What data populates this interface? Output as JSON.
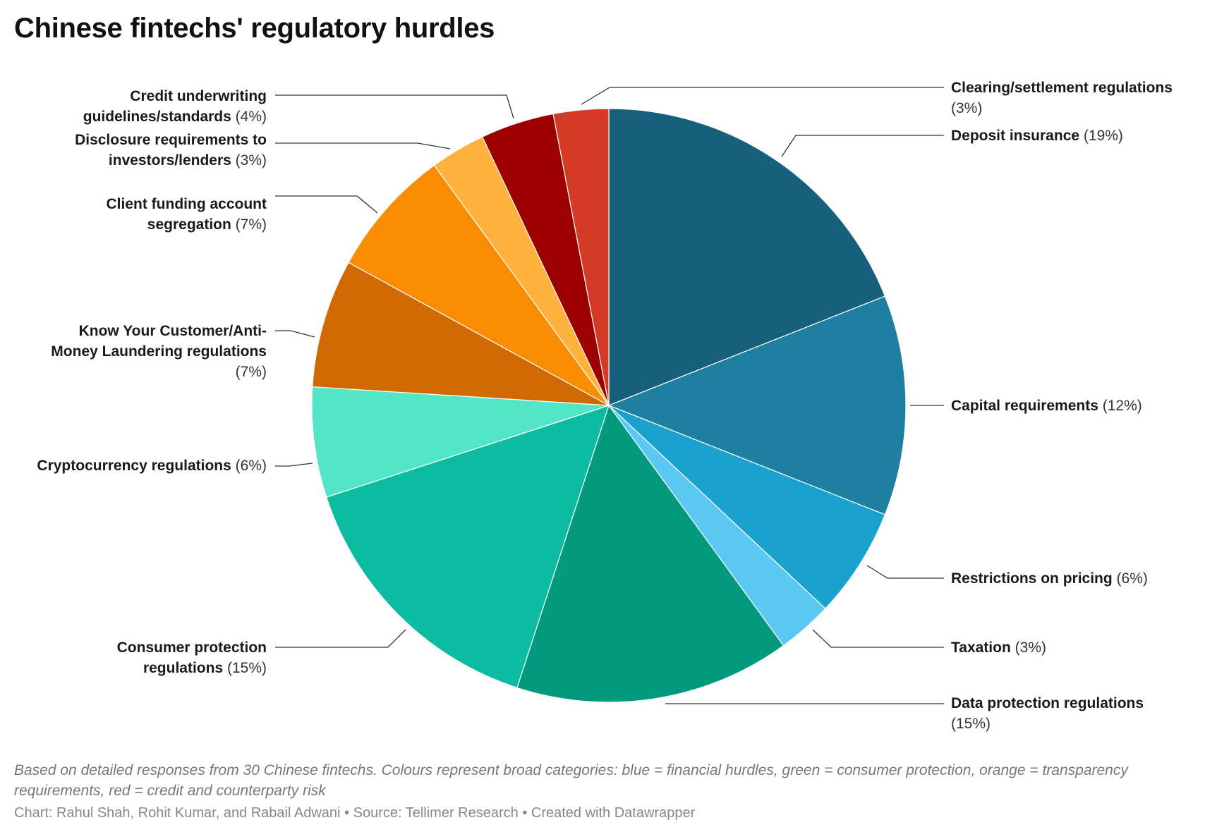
{
  "chart_data": {
    "type": "pie",
    "title": "Chinese fintechs' regulatory hurdles",
    "slices": [
      {
        "name": "Deposit insurance",
        "label": "(19%)",
        "value": 19,
        "color": "#17607c"
      },
      {
        "name": "Capital requirements",
        "label": "(12%)",
        "value": 12,
        "color": "#1f7fa0"
      },
      {
        "name": "Restrictions on pricing",
        "label": "(6%)",
        "value": 6,
        "color": "#1aa2cf"
      },
      {
        "name": "Taxation",
        "label": "(3%)",
        "value": 3,
        "color": "#5bc8f4"
      },
      {
        "name": "Data protection regulations",
        "label": "(15%)",
        "value": 15,
        "color": "#019a7f"
      },
      {
        "name": "Consumer protection regulations",
        "label": "(15%)",
        "value": 15,
        "color": "#0cbca0"
      },
      {
        "name": "Cryptocurrency regulations",
        "label": "(6%)",
        "value": 6,
        "color": "#52e5c8"
      },
      {
        "name": "Know Your Customer/Anti-Money Laundering regulations",
        "label": "(7%)",
        "value": 7,
        "color": "#d06a00"
      },
      {
        "name": "Client funding account segregation",
        "label": "(7%)",
        "value": 7,
        "color": "#f98c00"
      },
      {
        "name": "Disclosure requirements to investors/lenders",
        "label": "(3%)",
        "value": 3,
        "color": "#ffb13c"
      },
      {
        "name": "Credit underwriting guidelines/standards",
        "label": "(4%)",
        "value": 4,
        "color": "#9c0000"
      },
      {
        "name": "Clearing/settlement regulations",
        "label": "(3%)",
        "value": 3,
        "color": "#d43b26"
      }
    ]
  },
  "notes": "Based on detailed responses from 30 Chinese fintechs. Colours represent broad categories: blue = financial hurdles, green = consumer protection, orange = transparency requirements, red = credit and counterparty risk",
  "credit": "Chart: Rahul Shah, Rohit Kumar, and Rabail Adwani • Source: Tellimer Research • Created with Datawrapper"
}
